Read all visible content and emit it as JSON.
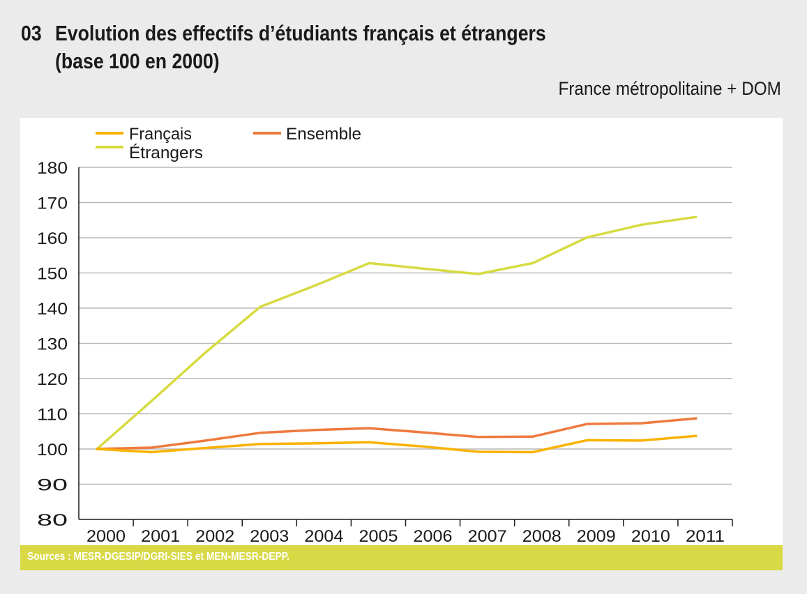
{
  "header": {
    "number": "03",
    "title_line1": "Evolution des effectifs d’étudiants français et étrangers",
    "title_line2": "(base 100 en 2000)",
    "subtitle": "France métropolitaine + DOM"
  },
  "footer": {
    "sources": "Sources : MESR-DGESIP/DGRI-SIES et MEN-MESR-DEPP."
  },
  "chart_data": {
    "type": "line",
    "title": "Evolution des effectifs d’étudiants français et étrangers (base 100 en 2000)",
    "subtitle": "France métropolitaine + DOM",
    "xlabel": "",
    "ylabel": "",
    "categories": [
      "2000",
      "2001",
      "2002",
      "2003",
      "2004",
      "2005",
      "2006",
      "2007",
      "2008",
      "2009",
      "2010",
      "2011"
    ],
    "ylim": [
      80,
      180
    ],
    "yticks": [
      80,
      90,
      100,
      110,
      120,
      130,
      140,
      150,
      160,
      170,
      180
    ],
    "grid": true,
    "legend_position": "top-left",
    "series": [
      {
        "name": "Français",
        "color": "#f9b200",
        "values": [
          100,
          99.1,
          100.3,
          101.4,
          101.6,
          101.9,
          100.7,
          99.2,
          99.1,
          102.5,
          102.4,
          103.7
        ]
      },
      {
        "name": "Ensemble",
        "color": "#ee7a3e",
        "values": [
          100,
          100.4,
          102.4,
          104.6,
          105.4,
          105.9,
          104.7,
          103.4,
          103.5,
          107.1,
          107.3,
          108.7
        ]
      },
      {
        "name": "Étrangers",
        "color": "#d6db42",
        "values": [
          100,
          113.6,
          127.5,
          140.4,
          146.4,
          152.8,
          151.2,
          149.7,
          152.8,
          160.1,
          163.7,
          165.9
        ]
      }
    ],
    "source": "Sources : MESR-DGESIP/DGRI-SIES et MEN-MESR-DEPP."
  }
}
